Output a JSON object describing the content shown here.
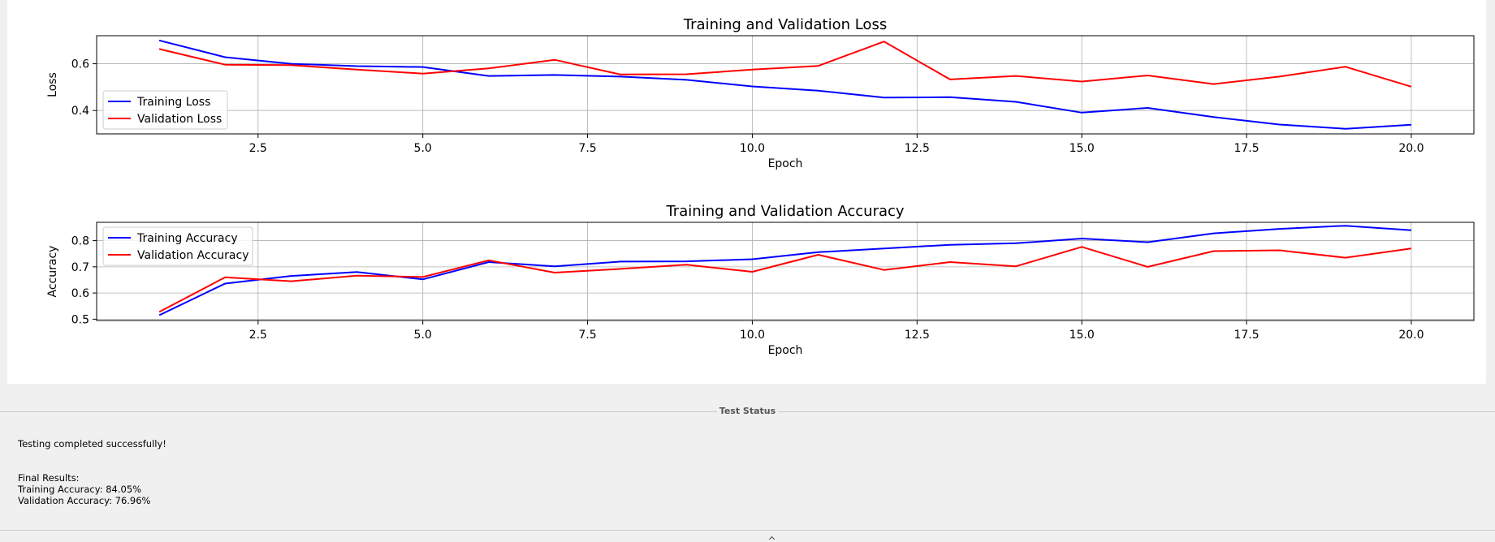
{
  "chart_data": [
    {
      "type": "line",
      "title": "Training and Validation Loss",
      "xlabel": "Epoch",
      "ylabel": "Loss",
      "xlim": [
        0.05,
        20.95
      ],
      "ylim": [
        0.3,
        0.72
      ],
      "xticks": [
        2.5,
        5.0,
        7.5,
        10.0,
        12.5,
        15.0,
        17.5,
        20.0
      ],
      "xtick_labels": [
        "2.5",
        "5.0",
        "7.5",
        "10.0",
        "12.5",
        "15.0",
        "17.5",
        "20.0"
      ],
      "yticks": [
        0.4,
        0.6
      ],
      "ytick_labels": [
        "0.4",
        "0.6"
      ],
      "grid": true,
      "legend_position": "center-left",
      "x": [
        1,
        2,
        3,
        4,
        5,
        6,
        7,
        8,
        9,
        10,
        11,
        12,
        13,
        14,
        15,
        16,
        17,
        18,
        19,
        20
      ],
      "series": [
        {
          "name": "Training Loss",
          "color": "#0000ff",
          "values": [
            0.7,
            0.628,
            0.6,
            0.59,
            0.586,
            0.548,
            0.552,
            0.545,
            0.531,
            0.503,
            0.485,
            0.455,
            0.457,
            0.437,
            0.391,
            0.411,
            0.372,
            0.34,
            0.322,
            0.339
          ]
        },
        {
          "name": "Validation Loss",
          "color": "#ff0000",
          "values": [
            0.663,
            0.596,
            0.594,
            0.575,
            0.558,
            0.58,
            0.617,
            0.554,
            0.555,
            0.575,
            0.591,
            0.695,
            0.533,
            0.548,
            0.524,
            0.55,
            0.513,
            0.545,
            0.587,
            0.502
          ]
        }
      ]
    },
    {
      "type": "line",
      "title": "Training and Validation Accuracy",
      "xlabel": "Epoch",
      "ylabel": "Accuracy",
      "xlim": [
        0.05,
        20.95
      ],
      "ylim": [
        0.495,
        0.87
      ],
      "xticks": [
        2.5,
        5.0,
        7.5,
        10.0,
        12.5,
        15.0,
        17.5,
        20.0
      ],
      "xtick_labels": [
        "2.5",
        "5.0",
        "7.5",
        "10.0",
        "12.5",
        "15.0",
        "17.5",
        "20.0"
      ],
      "yticks": [
        0.5,
        0.6,
        0.7,
        0.8
      ],
      "ytick_labels": [
        "0.5",
        "0.6",
        "0.7",
        "0.8"
      ],
      "grid": true,
      "legend_position": "upper-left",
      "x": [
        1,
        2,
        3,
        4,
        5,
        6,
        7,
        8,
        9,
        10,
        11,
        12,
        13,
        14,
        15,
        16,
        17,
        18,
        19,
        20
      ],
      "series": [
        {
          "name": "Training Accuracy",
          "color": "#0000ff",
          "values": [
            0.515,
            0.636,
            0.665,
            0.68,
            0.652,
            0.718,
            0.702,
            0.72,
            0.721,
            0.729,
            0.756,
            0.77,
            0.784,
            0.79,
            0.808,
            0.794,
            0.828,
            0.845,
            0.857,
            0.84
          ]
        },
        {
          "name": "Validation Accuracy",
          "color": "#ff0000",
          "values": [
            0.528,
            0.66,
            0.645,
            0.666,
            0.661,
            0.725,
            0.678,
            0.692,
            0.708,
            0.681,
            0.746,
            0.688,
            0.718,
            0.702,
            0.776,
            0.7,
            0.76,
            0.763,
            0.735,
            0.77
          ]
        }
      ]
    }
  ],
  "status": {
    "group_title": "Test Status",
    "text": "Testing completed successfully!\n\n\nFinal Results:\nTraining Accuracy: 84.05%\nValidation Accuracy: 76.96%"
  }
}
